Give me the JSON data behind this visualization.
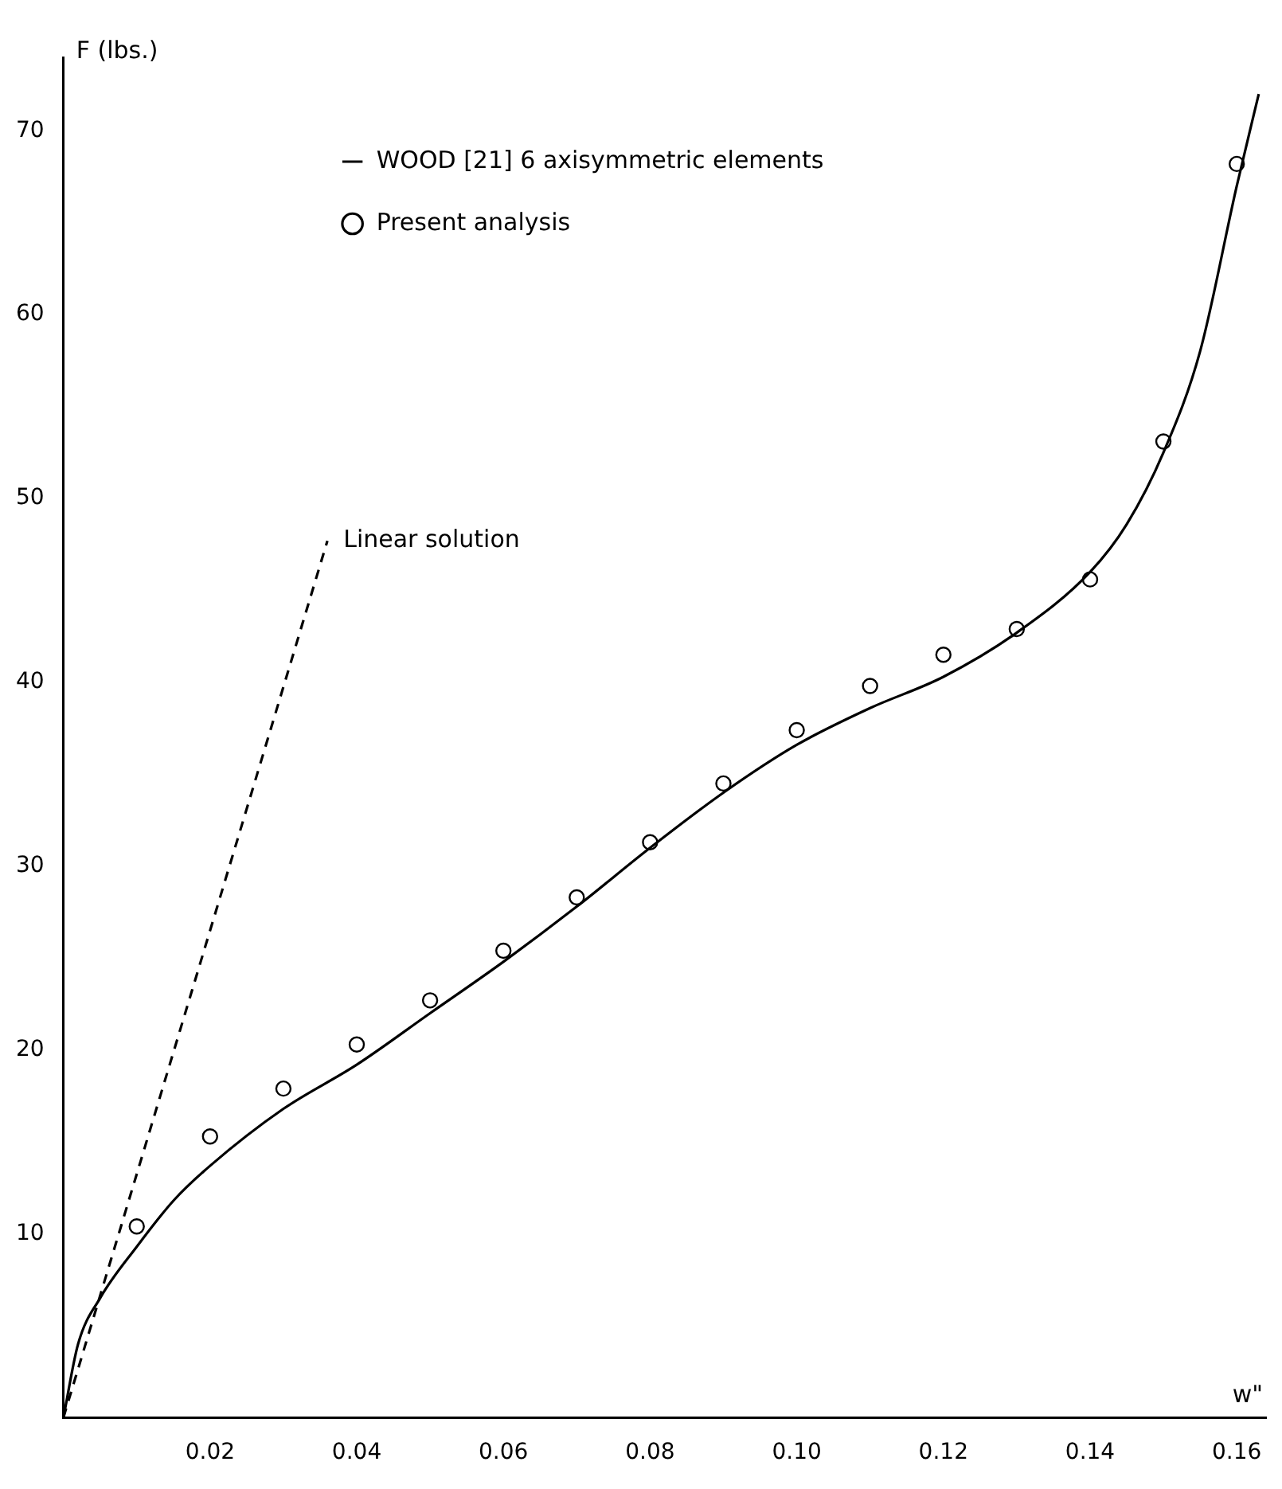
{
  "chart_data": {
    "type": "line",
    "xlabel": "w\"",
    "ylabel": "F (lbs.)",
    "xlim": [
      0,
      0.164
    ],
    "ylim": [
      0,
      74
    ],
    "xticks": [
      0.02,
      0.04,
      0.06,
      0.08,
      {
        "value": 0.1,
        "label": "0.10"
      },
      0.12,
      0.14,
      0.16
    ],
    "yticks": [
      10,
      20,
      30,
      40,
      50,
      60,
      70
    ],
    "grid": false,
    "legend": "top left",
    "series": [
      {
        "name": "WOOD [21] 6 axisymmetric elements",
        "type": "line",
        "color": "#000000",
        "marker": "none",
        "line_style": "solid",
        "x": [
          0,
          0.002,
          0.005,
          0.01,
          0.015,
          0.02,
          0.03,
          0.04,
          0.05,
          0.06,
          0.07,
          0.08,
          0.09,
          0.1,
          0.11,
          0.12,
          0.13,
          0.14,
          0.145,
          0.15,
          0.155,
          0.16,
          0.163
        ],
        "values": [
          0,
          4,
          6.5,
          9.3,
          11.8,
          13.7,
          16.8,
          19.2,
          22,
          24.8,
          27.8,
          31,
          34,
          36.6,
          38.6,
          40.3,
          42.7,
          46,
          48.6,
          52.5,
          58,
          67,
          72
        ]
      },
      {
        "name": "Present analysis",
        "type": "scatter",
        "color": "#000000",
        "marker": "circle",
        "x": [
          0.01,
          0.02,
          0.03,
          0.04,
          0.05,
          0.06,
          0.07,
          0.08,
          0.09,
          0.1,
          0.11,
          0.12,
          0.13,
          0.14,
          0.15,
          0.16
        ],
        "values": [
          10.4,
          15.3,
          17.9,
          20.3,
          22.7,
          25.4,
          28.3,
          31.3,
          34.5,
          37.4,
          39.8,
          41.5,
          42.9,
          45.6,
          53.1,
          68.2
        ]
      },
      {
        "type": "line",
        "color": "#000000",
        "marker": "none",
        "line_style": "dashed",
        "x": [
          0,
          0.036
        ],
        "values": [
          0,
          47.7
        ]
      }
    ],
    "annotations": [
      {
        "text": "Linear solution",
        "x": 0.036,
        "y": 47.7
      }
    ]
  }
}
